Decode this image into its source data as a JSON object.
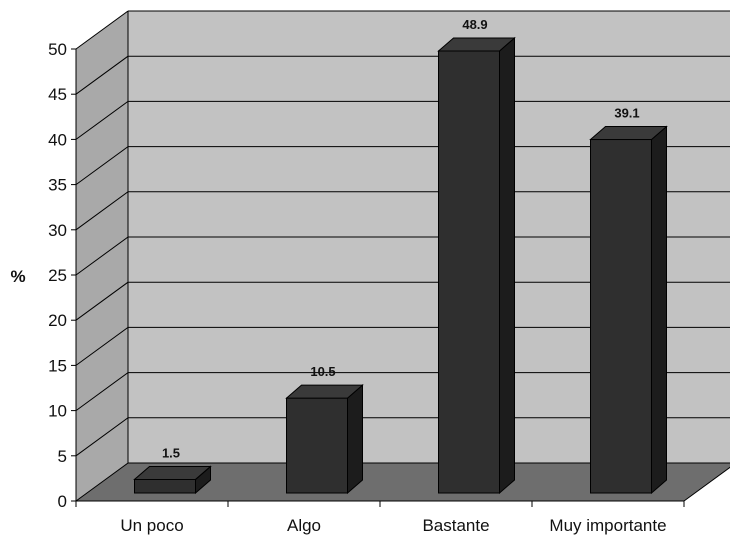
{
  "chart_data": {
    "type": "bar",
    "title": "",
    "xlabel": "",
    "ylabel": "%",
    "categories": [
      "Un poco",
      "Algo",
      "Bastante",
      "Muy importante"
    ],
    "values": [
      1.5,
      10.5,
      48.9,
      39.1
    ],
    "data_labels": [
      "1.5",
      "10.5",
      "48.9",
      "39.1"
    ],
    "ylim": [
      0,
      50
    ],
    "yticks": [
      "0",
      "5",
      "10",
      "15",
      "20",
      "25",
      "30",
      "35",
      "40",
      "45",
      "50"
    ],
    "grid": true,
    "style": "3d-column",
    "colors": {
      "bar_front": "#2f2f2f",
      "bar_side": "#1c1c1c",
      "bar_top": "#3a3a3a",
      "back_wall": "#c2c2c2",
      "side_wall": "#a9a9a9",
      "floor": "#6e6e6e"
    }
  }
}
